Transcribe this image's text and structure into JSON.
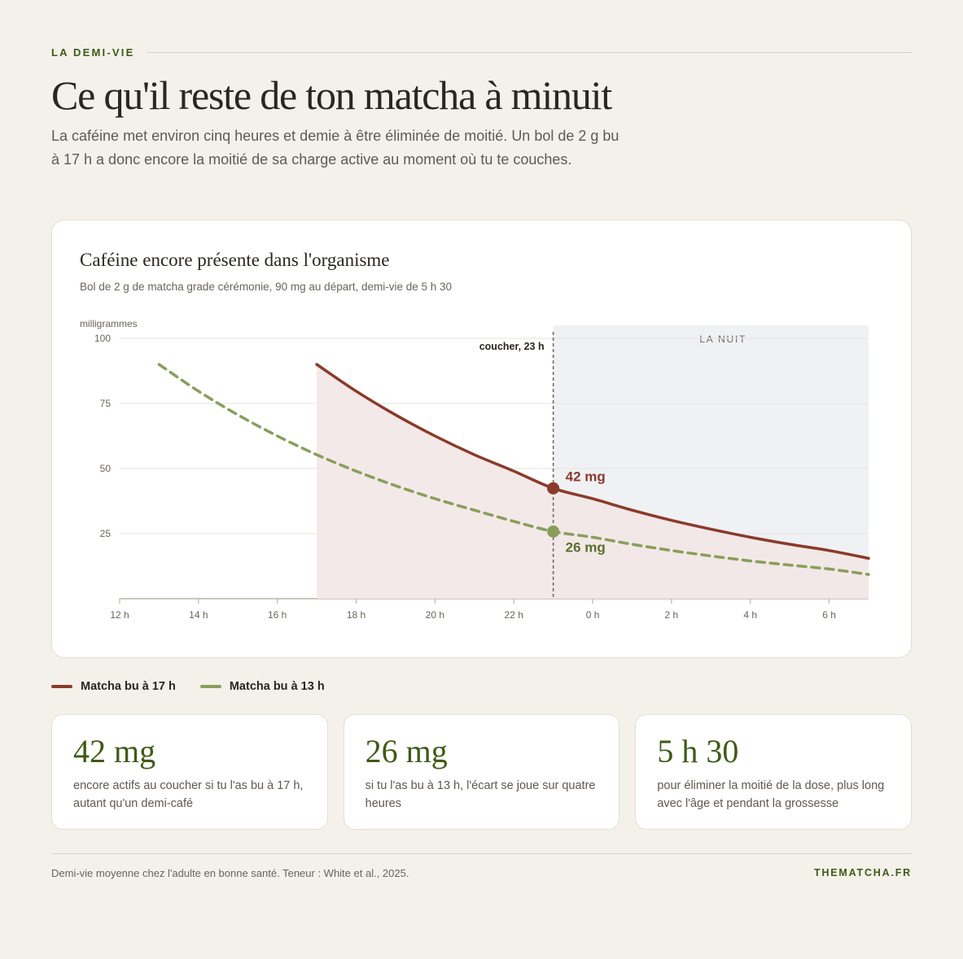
{
  "header": {
    "eyebrow": "LA DEMI-VIE",
    "title": "Ce qu'il reste de ton matcha à minuit",
    "subtitle": "La caféine met environ cinq heures et demie à être éliminée de moitié. Un bol de 2 g bu à 17 h a donc encore la moitié de sa charge active au moment où tu te couches."
  },
  "card": {
    "title": "Caféine encore présente dans l'organisme",
    "subtitle": "Bol de 2 g de matcha grade cérémonie, 90 mg au départ, demi-vie de 5 h 30"
  },
  "chart_data": {
    "type": "line",
    "ylabel": "milligrammes",
    "ylim": [
      0,
      100
    ],
    "yticks": [
      100,
      75,
      50,
      25
    ],
    "xlim": [
      12,
      31
    ],
    "x_ticks": [
      {
        "x": 12,
        "label": "12 h"
      },
      {
        "x": 14,
        "label": "14 h"
      },
      {
        "x": 16,
        "label": "16 h"
      },
      {
        "x": 18,
        "label": "18 h"
      },
      {
        "x": 20,
        "label": "20 h"
      },
      {
        "x": 22,
        "label": "22 h"
      },
      {
        "x": 24,
        "label": "0 h"
      },
      {
        "x": 26,
        "label": "2 h"
      },
      {
        "x": 28,
        "label": "4 h"
      },
      {
        "x": 30,
        "label": "6 h"
      }
    ],
    "night_region": {
      "from": 23,
      "to": 31,
      "label": "LA NUIT"
    },
    "bedtime": {
      "x": 23,
      "label": "coucher, 23 h"
    },
    "grid": true,
    "legend_placement": "bottom-left",
    "series": [
      {
        "name": "Matcha bu à 17 h",
        "color": "#8b3a2b",
        "style": "solid",
        "filled": true,
        "x": [
          17,
          18,
          19,
          20,
          21,
          22,
          23,
          24,
          25,
          26,
          27,
          28,
          29,
          30,
          31
        ],
        "values": [
          90,
          79.7,
          70.6,
          62.5,
          55.3,
          49.0,
          42.4,
          38.4,
          34.0,
          30.1,
          26.7,
          23.6,
          20.9,
          18.5,
          15.5
        ],
        "marker": {
          "x": 23,
          "y": 42.4,
          "label": "42 mg"
        }
      },
      {
        "name": "Matcha bu à 13 h",
        "color": "#8a9e5b",
        "style": "dashed",
        "filled": false,
        "x": [
          13,
          14,
          15,
          16,
          17,
          18,
          19,
          20,
          21,
          22,
          23,
          24,
          25,
          26,
          27,
          28,
          29,
          30,
          31
        ],
        "values": [
          90,
          79.7,
          70.6,
          62.5,
          55.3,
          49.0,
          43.4,
          38.4,
          34.0,
          29.7,
          25.8,
          23.6,
          20.9,
          18.5,
          16.4,
          14.5,
          12.9,
          11.4,
          9.3
        ],
        "marker": {
          "x": 23,
          "y": 25.8,
          "label": "26 mg"
        }
      }
    ]
  },
  "stats": [
    {
      "value": "42 mg",
      "text": "encore actifs au coucher si tu l'as bu à 17 h, autant qu'un demi-café"
    },
    {
      "value": "26 mg",
      "text": "si tu l'as bu à 13 h, l'écart se joue sur quatre heures"
    },
    {
      "value": "5 h 30",
      "text": "pour éliminer la moitié de la dose, plus long avec l'âge et pendant la grossesse"
    }
  ],
  "footer": {
    "note": "Demi-vie moyenne chez l'adulte en bonne santé. Teneur : White et al., 2025.",
    "brand": "THEMATCHA.FR"
  },
  "colors": {
    "accent_green": "#3f5a17",
    "series_red": "#8b3a2b",
    "series_green": "#8a9e5b",
    "night_fill": "#f0f1f4",
    "area_fill": "#f2e7e6"
  }
}
